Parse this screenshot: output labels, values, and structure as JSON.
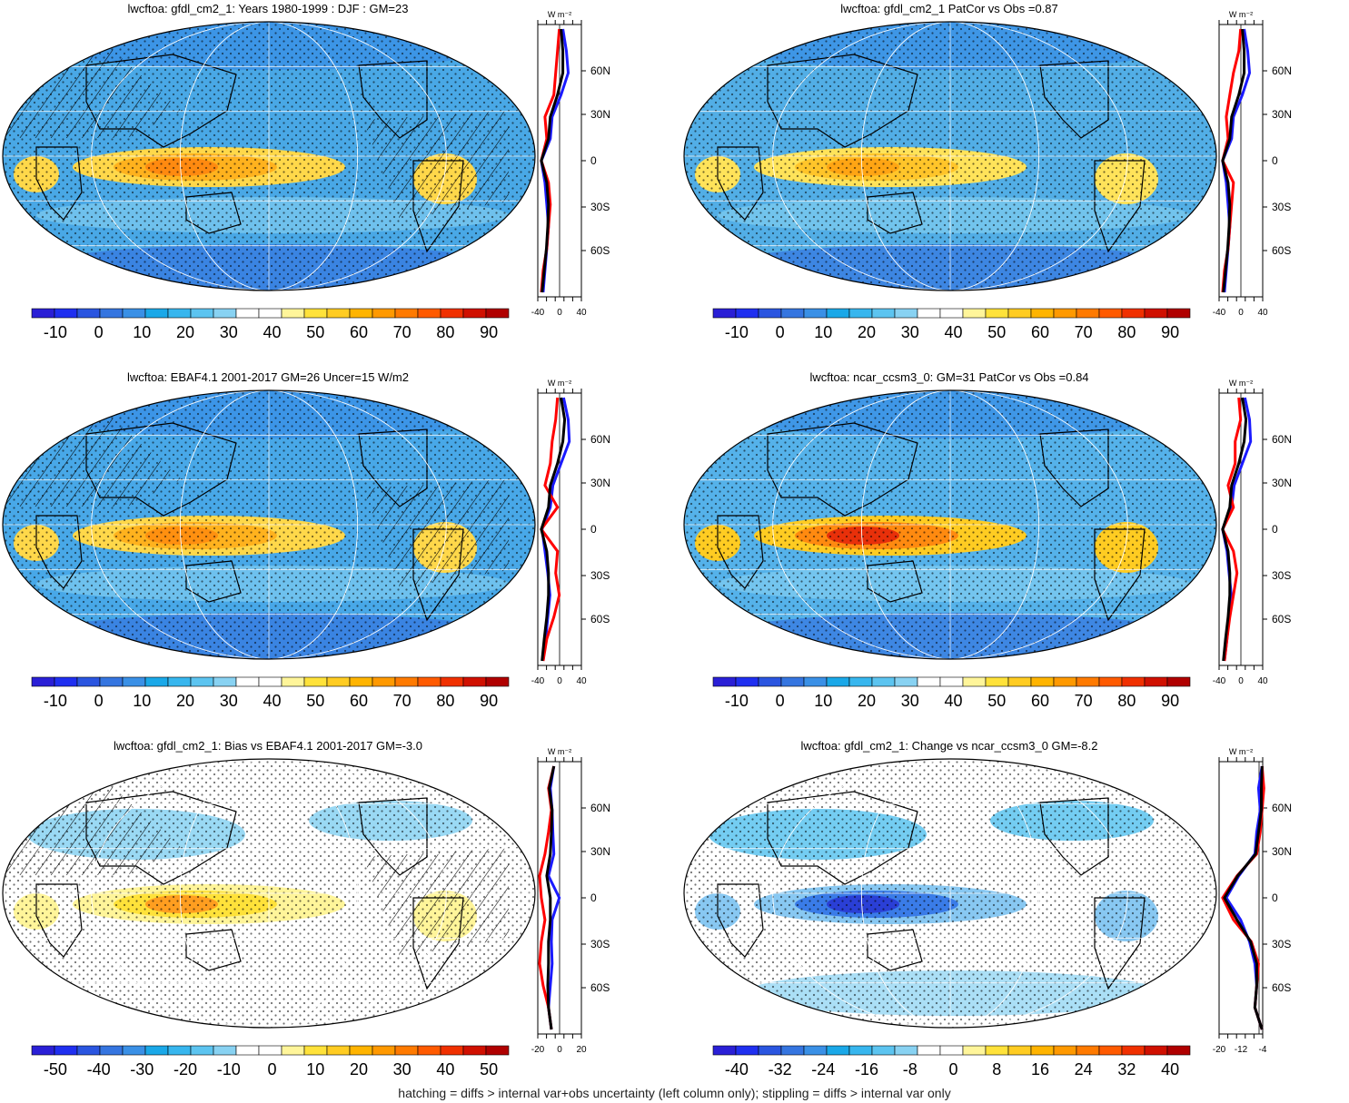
{
  "panels": [
    {
      "id": "p1",
      "title": "lwcftoa: gfdl_cm2_1: Years 1980-1999 : DJF : GM=23",
      "colorbar_labels": [
        "-10",
        "0",
        "10",
        "20",
        "30",
        "40",
        "50",
        "60",
        "70",
        "80",
        "90"
      ],
      "zonal_ticks": [
        "-40",
        "0",
        "40"
      ],
      "unit": "W m⁻²",
      "lat_labels": [
        "60N",
        "30N",
        "0",
        "30S",
        "60S"
      ]
    },
    {
      "id": "p2",
      "title": "lwcftoa: gfdl_cm2_1 PatCor vs Obs =0.87",
      "colorbar_labels": [
        "-10",
        "0",
        "10",
        "20",
        "30",
        "40",
        "50",
        "60",
        "70",
        "80",
        "90"
      ],
      "zonal_ticks": [
        "-40",
        "0",
        "40"
      ],
      "unit": "W m⁻²",
      "lat_labels": [
        "60N",
        "30N",
        "0",
        "30S",
        "60S"
      ]
    },
    {
      "id": "p3",
      "title": "lwcftoa: EBAF4.1 2001-2017 GM=26 Uncer=15 W/m2",
      "colorbar_labels": [
        "-10",
        "0",
        "10",
        "20",
        "30",
        "40",
        "50",
        "60",
        "70",
        "80",
        "90"
      ],
      "zonal_ticks": [
        "-40",
        "0",
        "40"
      ],
      "unit": "W m⁻²",
      "lat_labels": [
        "60N",
        "30N",
        "0",
        "30S",
        "60S"
      ]
    },
    {
      "id": "p4",
      "title": "lwcftoa: ncar_ccsm3_0: GM=31 PatCor vs Obs =0.84",
      "colorbar_labels": [
        "-10",
        "0",
        "10",
        "20",
        "30",
        "40",
        "50",
        "60",
        "70",
        "80",
        "90"
      ],
      "zonal_ticks": [
        "-40",
        "0",
        "40"
      ],
      "unit": "W m⁻²",
      "lat_labels": [
        "60N",
        "30N",
        "0",
        "30S",
        "60S"
      ]
    },
    {
      "id": "p5",
      "title": "lwcftoa: gfdl_cm2_1: Bias vs EBAF4.1 2001-2017 GM=-3.0",
      "colorbar_labels": [
        "-50",
        "-40",
        "-30",
        "-20",
        "-10",
        "0",
        "10",
        "20",
        "30",
        "40",
        "50"
      ],
      "zonal_ticks": [
        "-20",
        "0",
        "20"
      ],
      "unit": "W m⁻²",
      "lat_labels": [
        "60N",
        "30N",
        "0",
        "30S",
        "60S"
      ]
    },
    {
      "id": "p6",
      "title": "lwcftoa: gfdl_cm2_1: Change vs ncar_ccsm3_0 GM=-8.2",
      "colorbar_labels": [
        "-40",
        "-32",
        "-24",
        "-16",
        "-8",
        "0",
        "8",
        "16",
        "24",
        "32",
        "40"
      ],
      "zonal_ticks": [
        "-20",
        "-12",
        "-4"
      ],
      "unit": "W m⁻²",
      "lat_labels": [
        "60N",
        "30N",
        "0",
        "30S",
        "60S"
      ]
    }
  ],
  "colors": {
    "palette": [
      "#2a1fd6",
      "#1f2ff0",
      "#2a55e0",
      "#3575e0",
      "#3a90e6",
      "#1aa8e8",
      "#37b6ee",
      "#5cc4f0",
      "#88d2f2",
      "#ffffff",
      "#ffffff",
      "#fff59a",
      "#ffe23a",
      "#ffcc22",
      "#ffb400",
      "#ff9900",
      "#ff7a00",
      "#ff5a00",
      "#f03000",
      "#d01000",
      "#b00000"
    ],
    "model_line": "#000000",
    "obs_low": "#1a1aff",
    "obs_high": "#ff0000",
    "ocean_base": "#52aee6"
  },
  "footer": "hatching = diffs > internal var+obs uncertainty (left column only); stippling = diffs > internal var only"
}
